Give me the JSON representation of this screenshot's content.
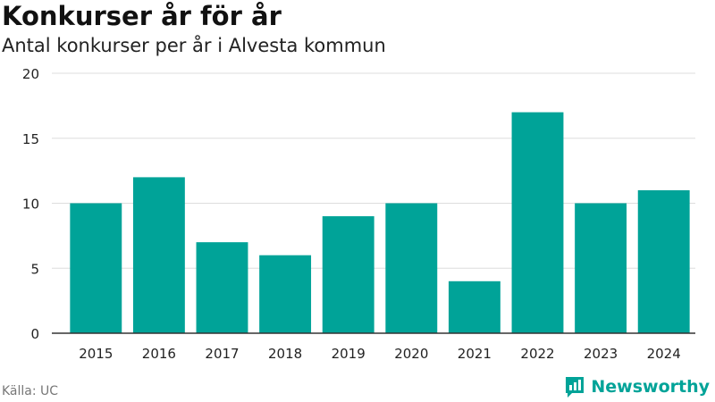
{
  "title": "Konkurser år för år",
  "subtitle": "Antal konkurser per år i Alvesta kommun",
  "source": "Källa: UC",
  "brand": {
    "name": "Newsworthy",
    "icon": "newsworthy-logo-icon",
    "color": "#00a398"
  },
  "chart_data": {
    "type": "bar",
    "categories": [
      "2015",
      "2016",
      "2017",
      "2018",
      "2019",
      "2020",
      "2021",
      "2022",
      "2023",
      "2024"
    ],
    "values": [
      10,
      12,
      7,
      6,
      9,
      10,
      4,
      17,
      10,
      11
    ],
    "ylim": [
      0,
      20
    ],
    "yticks": [
      0,
      5,
      10,
      15,
      20
    ],
    "grid": true,
    "bar_color": "#00a398"
  }
}
